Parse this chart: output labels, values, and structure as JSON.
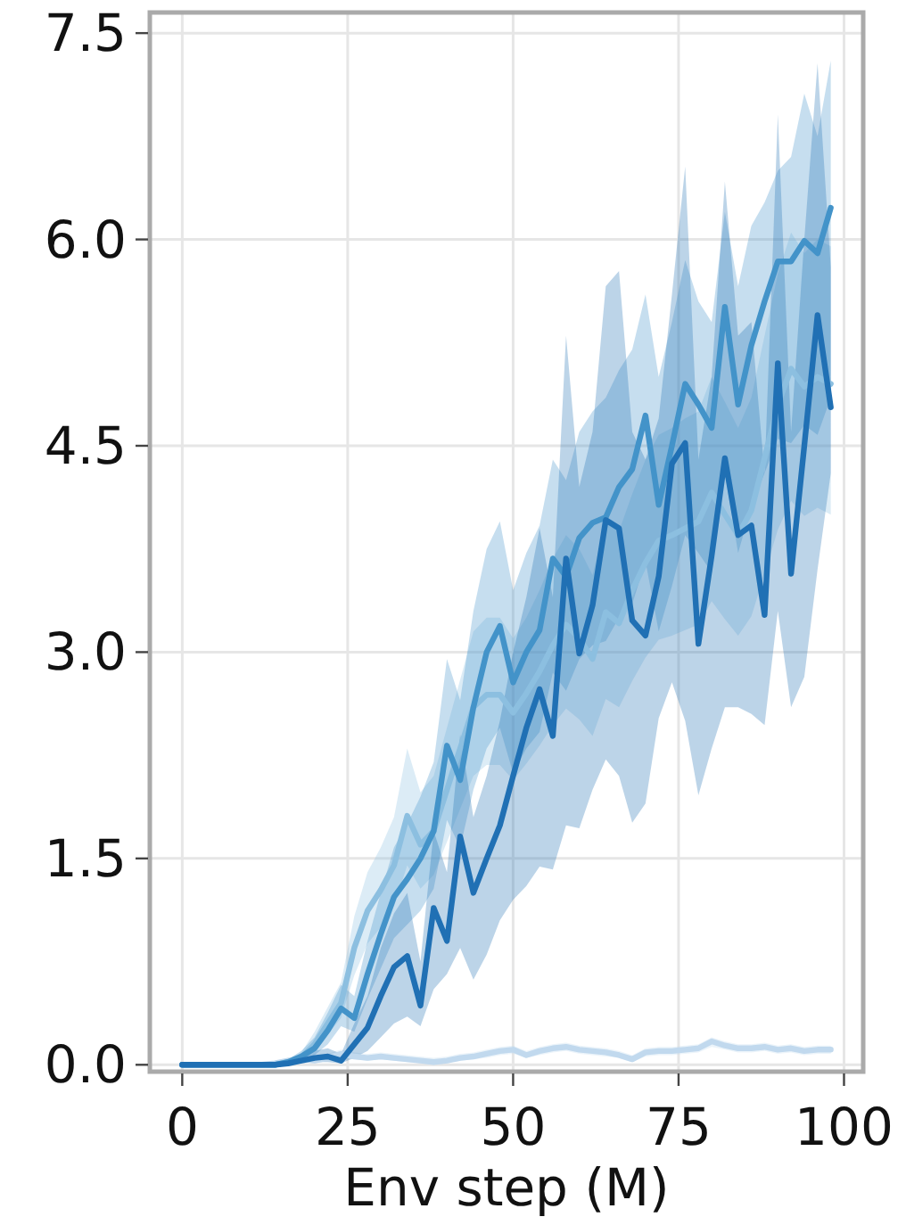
{
  "chart_data": {
    "type": "line",
    "xlabel": "Env step (M)",
    "x": [
      0,
      2,
      4,
      6,
      8,
      10,
      12,
      14,
      16,
      18,
      20,
      22,
      24,
      26,
      28,
      30,
      32,
      34,
      36,
      38,
      40,
      42,
      44,
      46,
      48,
      50,
      52,
      54,
      56,
      58,
      60,
      62,
      64,
      66,
      68,
      70,
      72,
      74,
      76,
      78,
      80,
      82,
      84,
      86,
      88,
      90,
      92,
      94,
      96,
      98
    ],
    "xlim": [
      -4.9,
      102.9
    ],
    "xticks": [
      0,
      25,
      50,
      75,
      100
    ],
    "ylim": [
      -0.05,
      7.65
    ],
    "yticks": [
      {
        "value": 0,
        "label": "0.0"
      },
      {
        "value": 1.5,
        "label": "1.5"
      },
      {
        "value": 3,
        "label": "3.0"
      },
      {
        "value": 4.5,
        "label": "4.5"
      },
      {
        "value": 6,
        "label": "6.0"
      },
      {
        "value": 7.5,
        "label": "7.5"
      }
    ],
    "grid": true,
    "line_style": "solid",
    "series": [
      {
        "color": "#c1d9ee",
        "values": [
          0,
          0,
          0,
          0,
          0,
          0,
          0,
          0.01,
          0.03,
          0.04,
          0.03,
          0.05,
          0.08,
          0.06,
          0.05,
          0.06,
          0.05,
          0.04,
          0.03,
          0.02,
          0.03,
          0.05,
          0.06,
          0.08,
          0.1,
          0.11,
          0.07,
          0.1,
          0.12,
          0.13,
          0.11,
          0.1,
          0.09,
          0.07,
          0.04,
          0.09,
          0.1,
          0.1,
          0.11,
          0.12,
          0.17,
          0.14,
          0.12,
          0.12,
          0.13,
          0.11,
          0.12,
          0.1,
          0.11,
          0.11
        ],
        "lower": [
          0,
          0,
          0,
          0,
          0,
          0,
          0,
          0,
          0.01,
          0.02,
          0.01,
          0.03,
          0.05,
          0.04,
          0.03,
          0.04,
          0.03,
          0.02,
          0.01,
          0,
          0.01,
          0.03,
          0.04,
          0.05,
          0.07,
          0.08,
          0.05,
          0.07,
          0.09,
          0.1,
          0.08,
          0.07,
          0.06,
          0.05,
          0.02,
          0.06,
          0.07,
          0.07,
          0.08,
          0.09,
          0.13,
          0.11,
          0.09,
          0.09,
          0.1,
          0.08,
          0.09,
          0.07,
          0.08,
          0.08
        ],
        "upper": [
          0,
          0,
          0,
          0,
          0,
          0,
          0,
          0.02,
          0.05,
          0.07,
          0.06,
          0.08,
          0.11,
          0.09,
          0.08,
          0.09,
          0.08,
          0.07,
          0.06,
          0.05,
          0.06,
          0.08,
          0.09,
          0.11,
          0.13,
          0.14,
          0.1,
          0.13,
          0.15,
          0.16,
          0.14,
          0.13,
          0.12,
          0.1,
          0.07,
          0.12,
          0.13,
          0.13,
          0.14,
          0.15,
          0.2,
          0.17,
          0.15,
          0.15,
          0.16,
          0.14,
          0.15,
          0.13,
          0.14,
          0.14
        ]
      },
      {
        "color": "#8cbfe0",
        "values": [
          0,
          0,
          0,
          0,
          0,
          0,
          0,
          0,
          0.02,
          0.05,
          0.15,
          0.3,
          0.45,
          0.85,
          1.12,
          1.27,
          1.45,
          1.81,
          1.6,
          1.7,
          2.0,
          2.3,
          2.6,
          2.69,
          2.69,
          2.56,
          2.7,
          2.86,
          3.05,
          3.2,
          3.1,
          2.95,
          3.29,
          3.21,
          3.45,
          3.65,
          3.81,
          3.85,
          3.9,
          3.95,
          4.16,
          4.0,
          3.85,
          4.03,
          4.41,
          4.8,
          5.06,
          4.93,
          5.0,
          4.95
        ],
        "lower": [
          0,
          0,
          0,
          0,
          0,
          0,
          0,
          0,
          0.01,
          0.03,
          0.1,
          0.22,
          0.34,
          0.65,
          0.88,
          1.0,
          1.15,
          1.45,
          1.28,
          1.38,
          1.62,
          1.86,
          2.1,
          2.18,
          2.18,
          2.07,
          2.19,
          2.32,
          2.47,
          2.59,
          2.51,
          2.39,
          2.66,
          2.6,
          2.79,
          2.96,
          3.09,
          3.12,
          3.16,
          3.2,
          3.37,
          3.24,
          3.12,
          3.26,
          3.57,
          3.89,
          4.1,
          3.99,
          4.05,
          4.0
        ],
        "upper": [
          0,
          0,
          0,
          0,
          0,
          0,
          0,
          0,
          0.04,
          0.09,
          0.24,
          0.42,
          0.6,
          1.08,
          1.4,
          1.58,
          1.8,
          2.3,
          1.98,
          2.1,
          2.45,
          2.8,
          3.15,
          3.25,
          3.25,
          3.1,
          3.25,
          3.45,
          3.68,
          3.85,
          3.75,
          3.56,
          3.95,
          3.88,
          4.15,
          4.4,
          4.58,
          4.63,
          4.7,
          4.75,
          5.0,
          4.82,
          4.63,
          4.85,
          5.3,
          5.75,
          6.05,
          5.9,
          6.0,
          5.95
        ]
      },
      {
        "color": "#4393c9",
        "values": [
          0,
          0,
          0,
          0,
          0,
          0,
          0,
          0,
          0.02,
          0.06,
          0.12,
          0.25,
          0.41,
          0.34,
          0.66,
          0.95,
          1.22,
          1.35,
          1.5,
          1.7,
          2.32,
          2.07,
          2.6,
          3.0,
          3.19,
          2.78,
          3.0,
          3.16,
          3.68,
          3.55,
          3.83,
          3.94,
          3.98,
          4.2,
          4.33,
          4.72,
          4.07,
          4.5,
          4.95,
          4.8,
          4.63,
          5.51,
          4.8,
          5.23,
          5.55,
          5.84,
          5.84,
          5.99,
          5.9,
          6.23
        ],
        "lower": [
          0,
          0,
          0,
          0,
          0,
          0,
          0,
          0,
          0.01,
          0.03,
          0.07,
          0.15,
          0.28,
          0.24,
          0.48,
          0.7,
          0.92,
          1.02,
          1.12,
          1.28,
          1.78,
          1.58,
          2.0,
          2.3,
          2.45,
          2.12,
          2.3,
          2.42,
          2.85,
          2.72,
          2.95,
          3.05,
          3.08,
          3.25,
          3.35,
          3.66,
          3.15,
          3.48,
          3.85,
          3.72,
          3.58,
          4.3,
          3.72,
          4.06,
          4.3,
          4.55,
          4.52,
          4.65,
          4.58,
          4.85
        ],
        "upper": [
          0,
          0,
          0,
          0,
          0,
          0,
          0,
          0,
          0.04,
          0.1,
          0.2,
          0.38,
          0.58,
          0.5,
          0.9,
          1.25,
          1.58,
          1.75,
          1.95,
          2.2,
          2.95,
          2.65,
          3.3,
          3.75,
          3.95,
          3.45,
          3.72,
          3.92,
          4.4,
          4.25,
          4.6,
          4.75,
          4.85,
          5.05,
          5.2,
          5.6,
          5.0,
          5.4,
          5.85,
          5.55,
          5.4,
          6.2,
          5.66,
          6.1,
          6.27,
          6.5,
          6.6,
          7.06,
          6.75,
          7.3
        ]
      },
      {
        "color": "#2070b4",
        "values": [
          0,
          0,
          0,
          0,
          0,
          0,
          0,
          0,
          0.01,
          0.03,
          0.05,
          0.06,
          0.03,
          0.15,
          0.27,
          0.5,
          0.71,
          0.79,
          0.43,
          1.14,
          0.9,
          1.66,
          1.25,
          1.5,
          1.74,
          2.1,
          2.45,
          2.73,
          2.39,
          3.68,
          2.99,
          3.34,
          3.96,
          3.9,
          3.23,
          3.12,
          3.55,
          4.37,
          4.52,
          3.06,
          3.7,
          4.41,
          3.85,
          3.92,
          3.27,
          5.1,
          3.57,
          4.5,
          5.45,
          4.78
        ],
        "lower": [
          0,
          0,
          0,
          0,
          0,
          0,
          0,
          0,
          0,
          0.01,
          0.02,
          0.02,
          0.01,
          0.05,
          0.1,
          0.2,
          0.3,
          0.35,
          0.28,
          0.55,
          0.66,
          0.85,
          0.62,
          0.8,
          1.05,
          1.2,
          1.3,
          1.44,
          1.42,
          1.74,
          1.72,
          2.0,
          2.22,
          2.1,
          1.76,
          1.9,
          2.52,
          2.78,
          2.5,
          1.96,
          2.3,
          2.6,
          2.6,
          2.55,
          2.47,
          3.3,
          2.6,
          2.82,
          3.6,
          4.3
        ],
        "upper": [
          0,
          0,
          0,
          0,
          0,
          0,
          0,
          0,
          0.03,
          0.06,
          0.1,
          0.12,
          0.08,
          0.3,
          0.5,
          0.85,
          1.1,
          1.25,
          0.75,
          1.7,
          1.4,
          2.4,
          1.8,
          2.1,
          2.5,
          3.0,
          3.4,
          3.9,
          3.4,
          5.3,
          4.2,
          4.6,
          5.66,
          5.77,
          4.6,
          4.4,
          4.7,
          5.6,
          6.53,
          4.4,
          5.0,
          6.42,
          5.3,
          5.4,
          4.3,
          6.91,
          4.6,
          6.0,
          7.28,
          5.8
        ]
      }
    ]
  }
}
